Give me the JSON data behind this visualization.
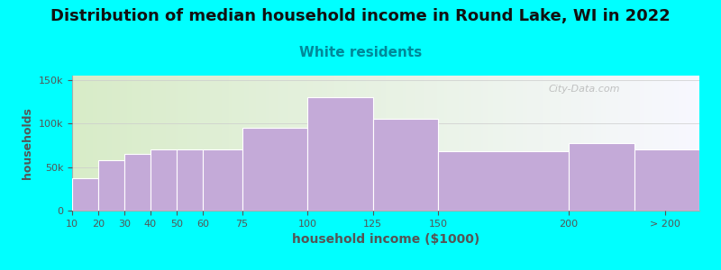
{
  "title": "Distribution of median household income in Round Lake, WI in 2022",
  "subtitle": "White residents",
  "xlabel": "household income ($1000)",
  "ylabel": "households",
  "background_color": "#00FFFF",
  "bar_color": "#c4aad8",
  "bar_edge_color": "#ffffff",
  "values": [
    37000,
    58000,
    65000,
    70000,
    70000,
    70000,
    95000,
    130000,
    105000,
    68000,
    77000,
    70000
  ],
  "bin_edges": [
    10,
    20,
    30,
    40,
    50,
    60,
    75,
    100,
    125,
    150,
    200,
    225,
    250
  ],
  "ylim": [
    0,
    155000
  ],
  "yticks": [
    0,
    50000,
    100000,
    150000
  ],
  "ytick_labels": [
    "0",
    "50k",
    "100k",
    "150k"
  ],
  "xtick_positions": [
    10,
    20,
    30,
    40,
    50,
    60,
    75,
    100,
    125,
    150,
    200,
    237
  ],
  "xtick_labels": [
    "10",
    "20",
    "30",
    "40",
    "50",
    "60",
    "75",
    "100",
    "125",
    "150",
    "200",
    "> 200"
  ],
  "title_fontsize": 13,
  "subtitle_fontsize": 11,
  "subtitle_color": "#008899",
  "axis_label_color": "#555555",
  "tick_color": "#555555",
  "watermark": "City-Data.com",
  "grad_colors_left": "#d8ecc8",
  "grad_colors_right": "#eeeeff"
}
